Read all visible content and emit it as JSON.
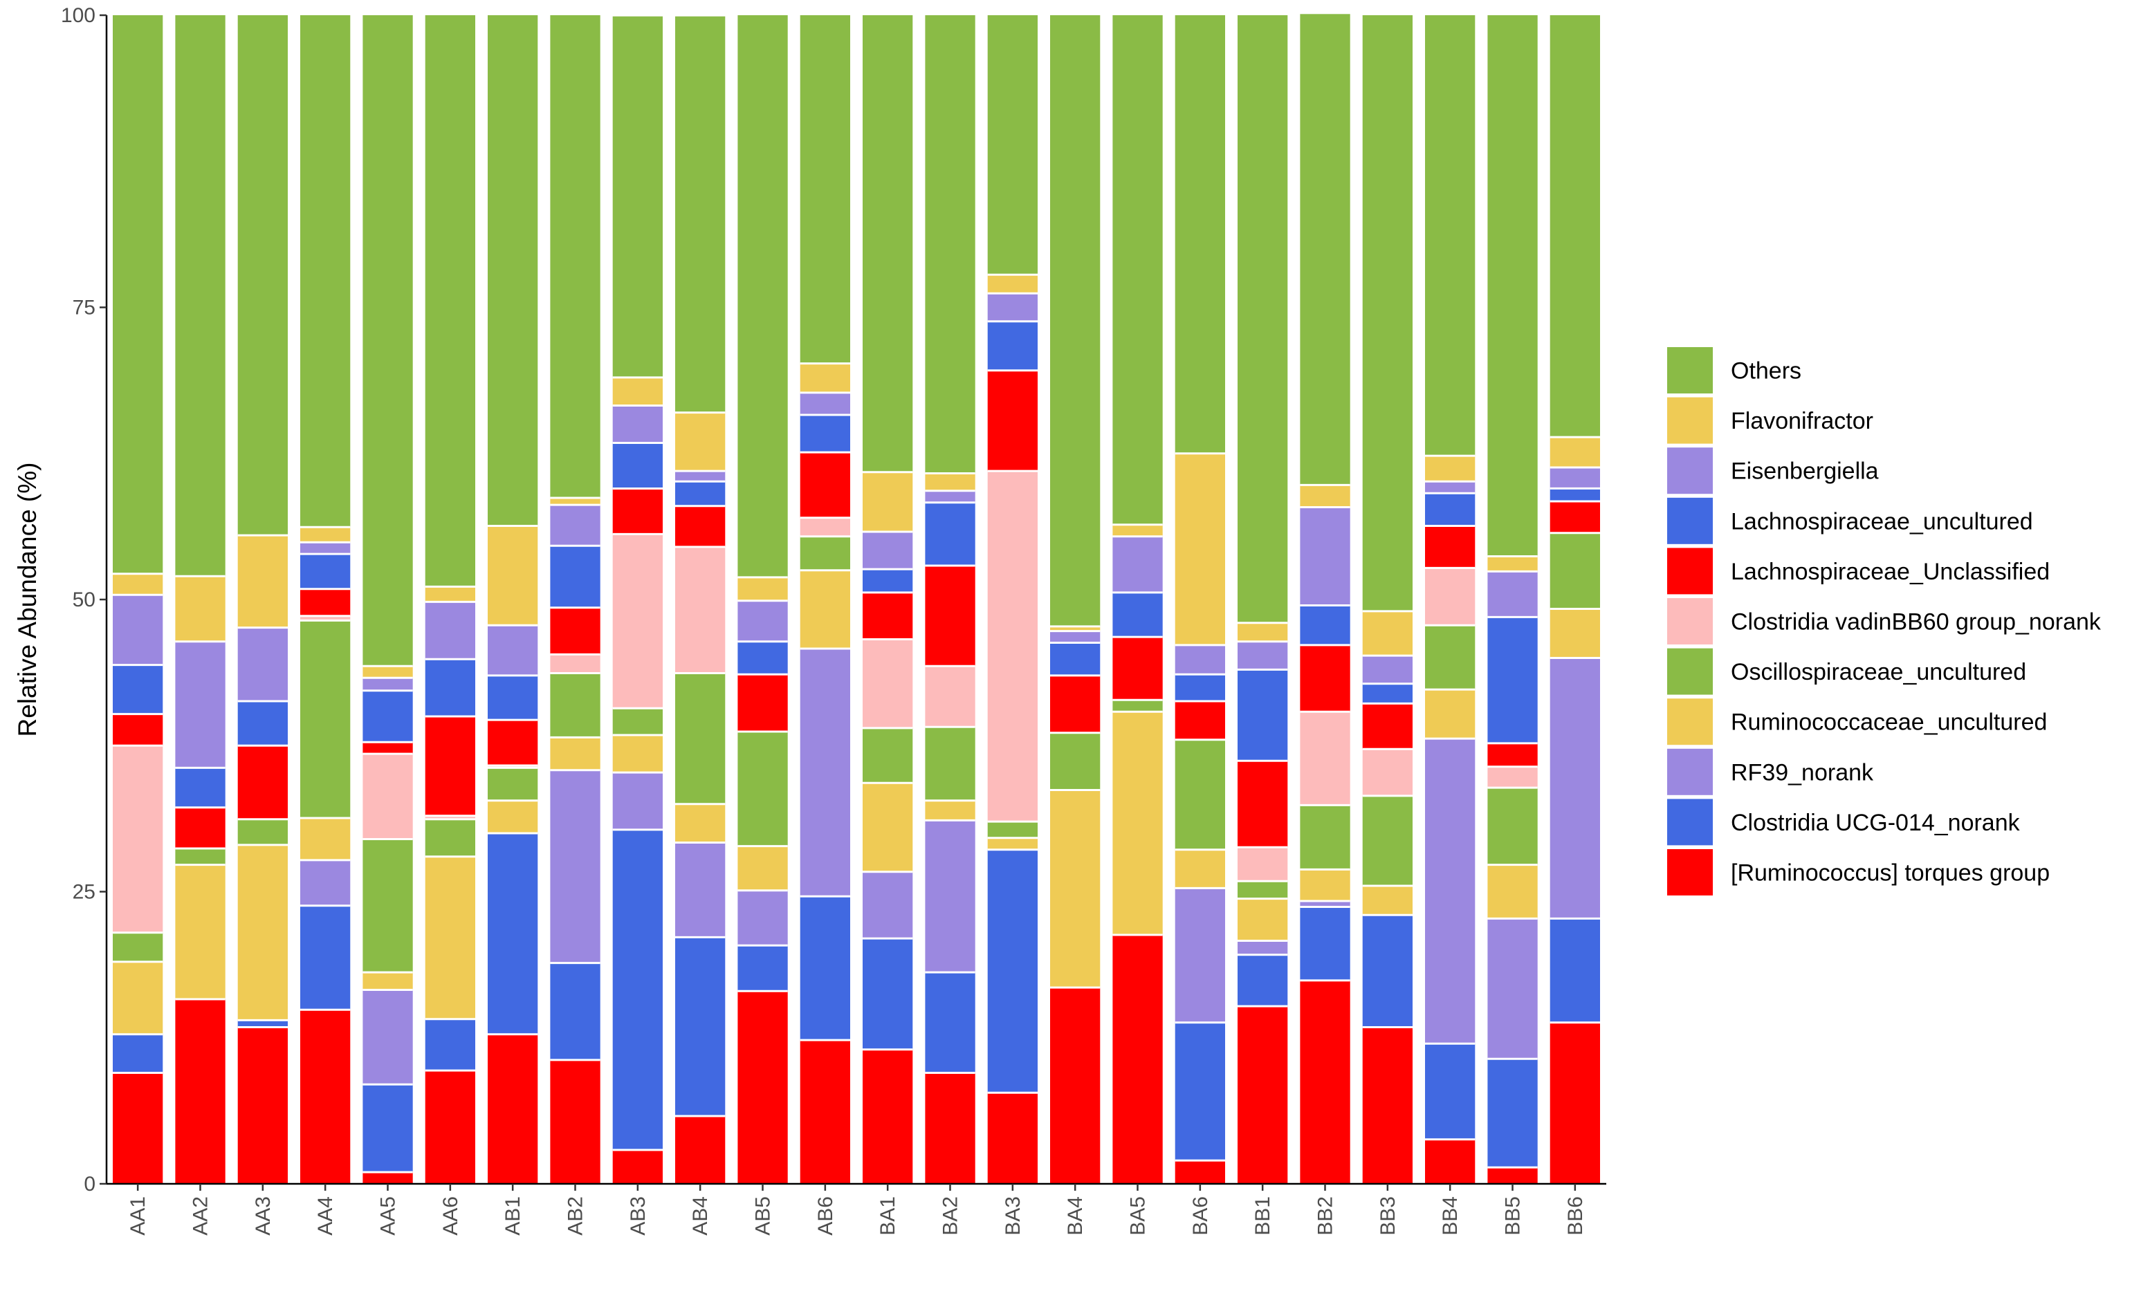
{
  "chart_data": {
    "type": "bar",
    "stacked": true,
    "title": "",
    "xlabel": "",
    "ylabel": "Relative Abundance (%)",
    "ylim": [
      0,
      100
    ],
    "yticks": [
      0,
      25,
      50,
      75,
      100
    ],
    "grid": false,
    "legend_position": "right",
    "categories": [
      "AA1",
      "AA2",
      "AA3",
      "AA4",
      "AA5",
      "AA6",
      "AB1",
      "AB2",
      "AB3",
      "AB4",
      "AB5",
      "AB6",
      "BA1",
      "BA2",
      "BA3",
      "BA4",
      "BA5",
      "BA6",
      "BB1",
      "BB2",
      "BB3",
      "BB4",
      "BB5",
      "BB6"
    ],
    "series": [
      {
        "name": "[Ruminococcus] torques group",
        "color": "#FF0000",
        "values": [
          9.5,
          15.8,
          13.4,
          14.9,
          1.0,
          9.7,
          12.8,
          10.6,
          2.9,
          5.8,
          16.5,
          12.3,
          11.5,
          9.5,
          7.8,
          16.8,
          21.3,
          2.0,
          15.2,
          17.4,
          13.4,
          3.8,
          1.4,
          13.8
        ]
      },
      {
        "name": "Clostridia UCG-014_norank",
        "color": "#4169E1",
        "values": [
          3.3,
          0,
          0.6,
          8.9,
          7.5,
          4.4,
          17.2,
          8.3,
          27.4,
          15.3,
          3.9,
          12.3,
          9.5,
          8.6,
          20.8,
          0,
          0,
          11.8,
          4.4,
          6.3,
          9.6,
          8.2,
          9.3,
          8.9
        ]
      },
      {
        "name": "RF39_norank",
        "color": "#9B88E0",
        "values": [
          0,
          0,
          0,
          3.9,
          8.1,
          0,
          0,
          16.5,
          4.9,
          8.1,
          4.7,
          21.2,
          5.7,
          13.0,
          0,
          0,
          0,
          11.5,
          1.2,
          0.5,
          0,
          26.1,
          12.0,
          22.3
        ]
      },
      {
        "name": "Ruminococcaceae_uncultured",
        "color": "#EFCB55",
        "values": [
          6.2,
          11.5,
          15.0,
          3.6,
          1.5,
          13.9,
          2.8,
          2.8,
          3.2,
          3.3,
          3.8,
          6.7,
          7.6,
          1.7,
          1.0,
          16.9,
          19.1,
          3.3,
          3.6,
          2.7,
          2.5,
          4.2,
          4.6,
          4.2
        ]
      },
      {
        "name": "Oscillospiraceae_uncultured",
        "color": "#8ABB46",
        "values": [
          2.5,
          1.4,
          2.2,
          16.9,
          11.4,
          3.2,
          2.8,
          5.5,
          2.3,
          11.2,
          9.8,
          2.9,
          4.7,
          6.3,
          1.4,
          4.9,
          1.0,
          9.4,
          1.5,
          5.5,
          7.7,
          5.5,
          6.6,
          6.5
        ]
      },
      {
        "name": "Clostridia vadinBB60 group_norank",
        "color": "#FDBBBB",
        "values": [
          16.0,
          0,
          0,
          0.4,
          7.3,
          0.3,
          0.2,
          1.6,
          14.9,
          10.8,
          0,
          1.6,
          7.6,
          5.2,
          30.0,
          0,
          0,
          0,
          2.9,
          8.0,
          4.0,
          4.9,
          1.8,
          0
        ]
      },
      {
        "name": "Lachnospiraceae_Unclassified",
        "color": "#FF0000",
        "values": [
          2.7,
          3.5,
          6.3,
          2.3,
          1.0,
          8.5,
          3.9,
          4.0,
          3.9,
          3.5,
          4.9,
          5.6,
          4.0,
          8.6,
          8.6,
          4.9,
          5.4,
          3.3,
          7.4,
          5.7,
          3.9,
          3.6,
          2.0,
          2.7
        ]
      },
      {
        "name": "Lachnospiraceae_uncultured",
        "color": "#4169E1",
        "values": [
          4.2,
          3.4,
          3.8,
          3.0,
          4.4,
          4.9,
          3.8,
          5.3,
          3.9,
          2.1,
          2.8,
          3.2,
          2.0,
          5.4,
          4.2,
          2.8,
          3.8,
          2.3,
          7.8,
          3.4,
          1.7,
          2.8,
          10.8,
          1.1
        ]
      },
      {
        "name": "Eisenbergiella",
        "color": "#9B88E0",
        "values": [
          6.0,
          10.8,
          6.3,
          1.0,
          1.1,
          4.9,
          4.3,
          3.5,
          3.2,
          0.9,
          3.5,
          1.9,
          3.2,
          1.0,
          2.4,
          1.0,
          4.8,
          2.5,
          2.4,
          8.4,
          2.4,
          1.0,
          3.9,
          1.8
        ]
      },
      {
        "name": "Flavonifractor",
        "color": "#EFCB55",
        "values": [
          1.8,
          5.6,
          7.9,
          1.3,
          1.0,
          1.3,
          8.5,
          0.6,
          2.4,
          5.0,
          2.0,
          2.5,
          5.1,
          1.5,
          1.6,
          0.4,
          1.0,
          16.4,
          1.6,
          1.9,
          3.8,
          2.2,
          1.3,
          2.6
        ]
      },
      {
        "name": "Others",
        "color": "#8ABB46",
        "values": [
          47.8,
          48.0,
          44.5,
          43.8,
          55.7,
          48.9,
          43.7,
          41.3,
          30.9,
          33.9,
          48.1,
          29.8,
          39.1,
          39.2,
          22.2,
          52.3,
          43.6,
          37.5,
          52.0,
          40.3,
          51.0,
          37.7,
          46.3,
          36.1
        ]
      }
    ]
  }
}
